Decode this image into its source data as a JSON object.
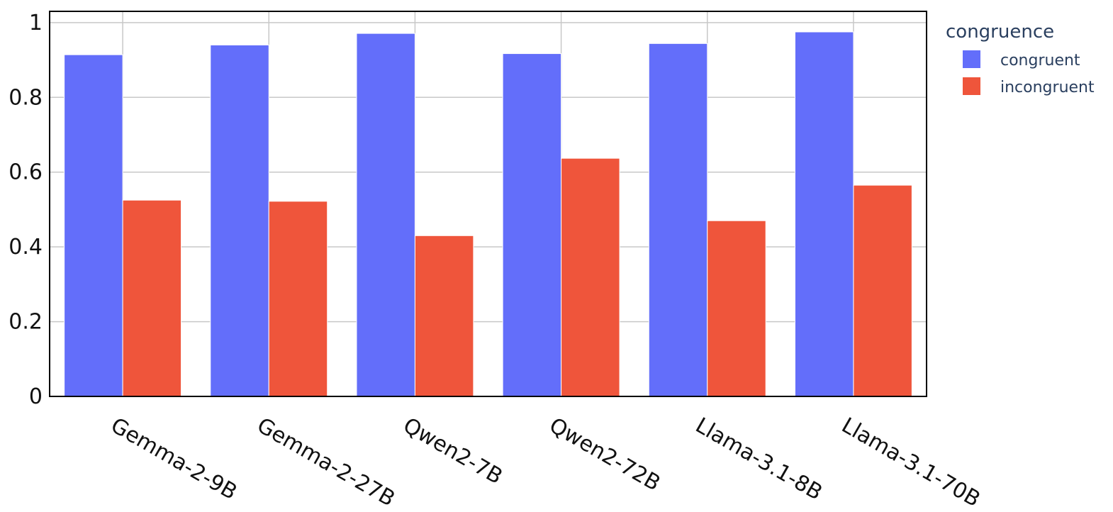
{
  "chart_data": {
    "type": "bar",
    "categories": [
      "Gemma-2-9B",
      "Gemma-2-27B",
      "Qwen2-7B",
      "Qwen2-72B",
      "Llama-3.1-8B",
      "Llama-3.1-70B"
    ],
    "series": [
      {
        "name": "congruent",
        "color": "#636efa",
        "values": [
          0.914,
          0.94,
          0.971,
          0.917,
          0.944,
          0.975
        ]
      },
      {
        "name": "incongruent",
        "color": "#ef553b",
        "values": [
          0.525,
          0.522,
          0.43,
          0.637,
          0.47,
          0.565
        ]
      }
    ],
    "yticks": [
      "0",
      "0.2",
      "0.4",
      "0.6",
      "0.8",
      "1"
    ],
    "ylim": [
      0,
      1.03
    ],
    "grid": true,
    "legend": {
      "title": "congruence",
      "placement": "top-right"
    },
    "title": "",
    "xlabel": "",
    "ylabel": ""
  }
}
